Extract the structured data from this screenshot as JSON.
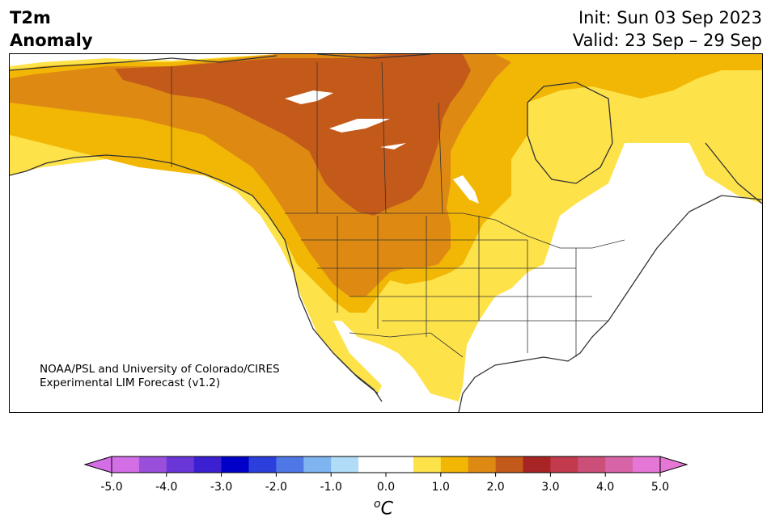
{
  "title": {
    "left_line1": "T2m",
    "left_line2": "Anomaly",
    "right_line1": "Init: Sun 03 Sep 2023",
    "right_line2": "Valid: 23 Sep – 29 Sep"
  },
  "credit": {
    "line1": "NOAA/PSL and University of Colorado/CIRES",
    "line2": "Experimental LIM Forecast (v1.2)"
  },
  "colorbar": {
    "unit_base": "C",
    "unit_sup": "o",
    "tick_labels": [
      "-5.0",
      "-4.0",
      "-3.0",
      "-2.0",
      "-1.0",
      "0.0",
      "1.0",
      "2.0",
      "3.0",
      "4.0",
      "5.0"
    ],
    "colors": [
      "#d36ee6",
      "#9a4fdc",
      "#6a36d8",
      "#3b1fd0",
      "#0000c8",
      "#2a3fdc",
      "#4f78e6",
      "#7eb4f0",
      "#b0dcf8",
      "#ffffff",
      "#ffffff",
      "#fde24a",
      "#f2b705",
      "#de8a12",
      "#c45a1a",
      "#a82424",
      "#c23a4c",
      "#cc4f7a",
      "#d864a8",
      "#e677d6"
    ],
    "under_color": "#d36ee6",
    "over_color": "#e677d6"
  },
  "map": {
    "region": "North America",
    "variable": "2-m temperature anomaly",
    "anomaly_colors": {
      "0.5-1.0": "#fde24a",
      "1.0-1.5": "#f2b705",
      "1.5-2.0": "#de8a12",
      "2.0-2.5": "#c45a1a"
    }
  }
}
